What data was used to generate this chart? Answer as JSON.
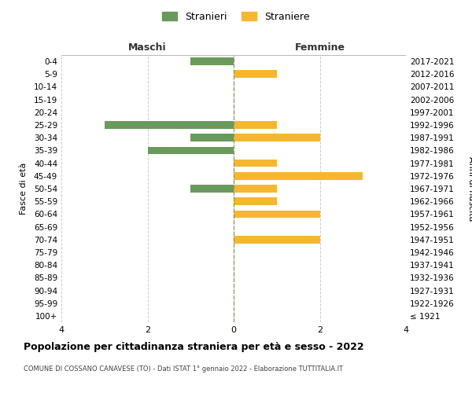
{
  "age_groups": [
    "100+",
    "95-99",
    "90-94",
    "85-89",
    "80-84",
    "75-79",
    "70-74",
    "65-69",
    "60-64",
    "55-59",
    "50-54",
    "45-49",
    "40-44",
    "35-39",
    "30-34",
    "25-29",
    "20-24",
    "15-19",
    "10-14",
    "5-9",
    "0-4"
  ],
  "birth_years": [
    "≤ 1921",
    "1922-1926",
    "1927-1931",
    "1932-1936",
    "1937-1941",
    "1942-1946",
    "1947-1951",
    "1952-1956",
    "1957-1961",
    "1962-1966",
    "1967-1971",
    "1972-1976",
    "1977-1981",
    "1982-1986",
    "1987-1991",
    "1992-1996",
    "1997-2001",
    "2002-2006",
    "2007-2011",
    "2012-2016",
    "2017-2021"
  ],
  "maschi": [
    0,
    0,
    0,
    0,
    0,
    0,
    0,
    0,
    0,
    0,
    1,
    0,
    0,
    2,
    1,
    3,
    0,
    0,
    0,
    0,
    1
  ],
  "femmine": [
    0,
    0,
    0,
    0,
    0,
    0,
    2,
    0,
    2,
    1,
    1,
    3,
    1,
    0,
    2,
    1,
    0,
    0,
    0,
    1,
    0
  ],
  "maschi_color": "#6a9a5b",
  "femmine_color": "#f5b731",
  "title": "Popolazione per cittadinanza straniera per età e sesso - 2022",
  "subtitle": "COMUNE DI COSSANO CANAVESE (TO) - Dati ISTAT 1° gennaio 2022 - Elaborazione TUTTITALIA.IT",
  "xlabel_left": "Maschi",
  "xlabel_right": "Femmine",
  "ylabel_left": "Fasce di età",
  "ylabel_right": "Anni di nascita",
  "legend_maschi": "Stranieri",
  "legend_femmine": "Straniere",
  "xlim": 4,
  "background_color": "#ffffff",
  "grid_color": "#cccccc",
  "dashed_line_color": "#999966"
}
